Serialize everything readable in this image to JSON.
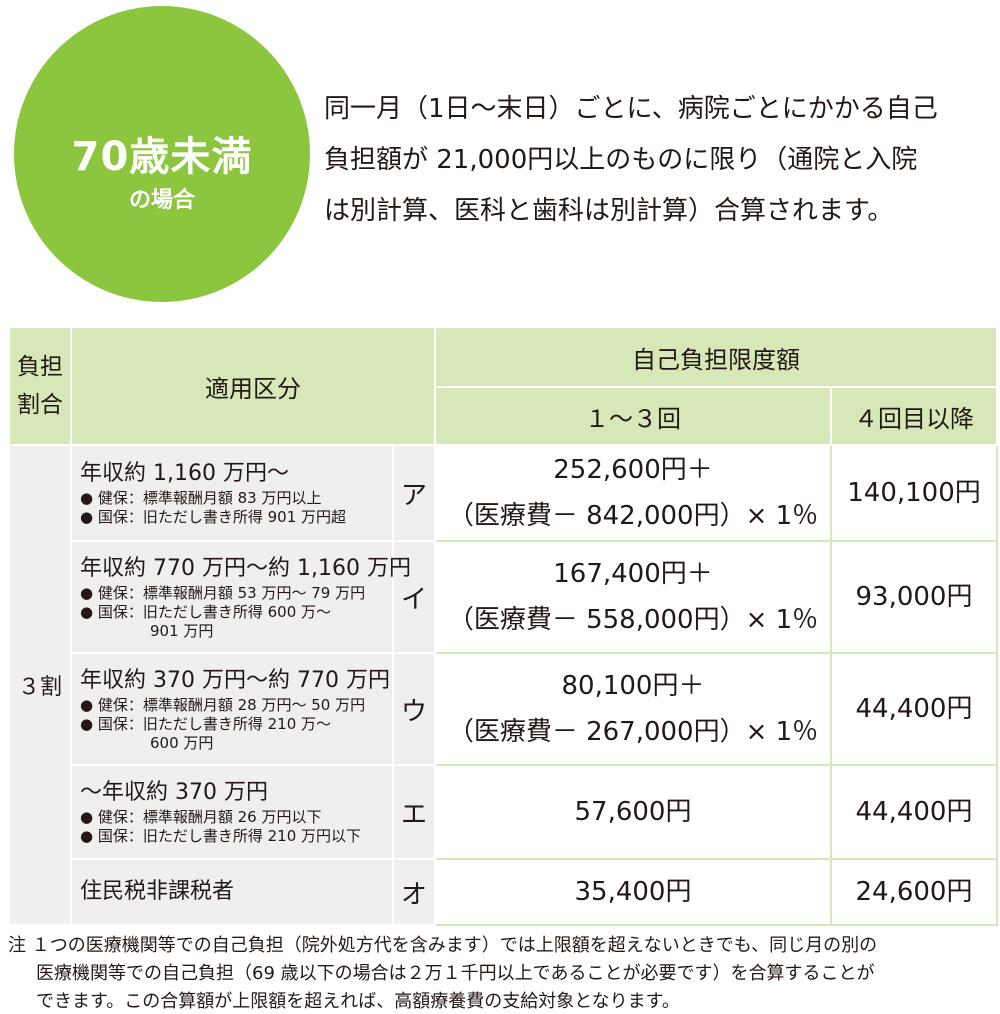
{
  "badge": {
    "title": "70歳未満",
    "subtitle": "の場合",
    "color": "#8cc63f"
  },
  "intro": {
    "lines": [
      "同一月（1日～末日）ごとに、病院ごとにかかる自己",
      "負担額が 21,000円以上のものに限り（通院と入院",
      "は別計算、医科と歯科は別計算）合算されます。"
    ]
  },
  "table": {
    "headers": {
      "rate": "負担割合",
      "category": "適用区分",
      "limit_group": "自己負担限度額",
      "limit_1_3": "１～３回",
      "limit_4plus": "４回目以降"
    },
    "rate_value": "３割",
    "rows": [
      {
        "category": "年収約 1,160 万円～",
        "notes": [
          "● 健保：標準報酬月額 83 万円以上",
          "● 国保：旧ただし書き所得 901 万円超"
        ],
        "code": "ア",
        "limit_line1": "252,600円＋",
        "limit_line2": "（医療費－ 842,000円）× 1％",
        "limit_4plus": "140,100円"
      },
      {
        "category": "年収約 770 万円～約 1,160 万円",
        "notes": [
          "● 健保：標準報酬月額 53 万円～ 79 万円",
          "● 国保：旧ただし書き所得 600 万～",
          "901 万円"
        ],
        "code": "イ",
        "limit_line1": "167,400円＋",
        "limit_line2": "（医療費－ 558,000円）× 1％",
        "limit_4plus": "93,000円"
      },
      {
        "category": "年収約 370 万円～約 770 万円",
        "notes": [
          "● 健保：標準報酬月額 28 万円～ 50 万円",
          "● 国保：旧ただし書き所得 210 万～",
          "600 万円"
        ],
        "code": "ウ",
        "limit_line1": "80,100円＋",
        "limit_line2": "（医療費－ 267,000円）× 1％",
        "limit_4plus": "44,400円"
      },
      {
        "category": "～年収約 370 万円",
        "notes": [
          "● 健保：標準報酬月額 26 万円以下",
          "● 国保：旧ただし書き所得 210 万円以下"
        ],
        "code": "エ",
        "limit_line1": "57,600円",
        "limit_4plus": "44,400円"
      },
      {
        "category": "住民税非課税者",
        "code": "オ",
        "limit_line1": "35,400円",
        "limit_4plus": "24,600円"
      }
    ]
  },
  "footnote": {
    "lines": [
      "注 １つの医療機関等での自己負担（院外処方代を含みます）では上限額を超えないときでも、同じ月の別の",
      "医療機関等での自己負担（69 歳以下の場合は２万１千円以上であることが必要です）を合算することが",
      "できます。この合算額が上限額を超えれば、高額療養費の支給対象となります。"
    ]
  }
}
